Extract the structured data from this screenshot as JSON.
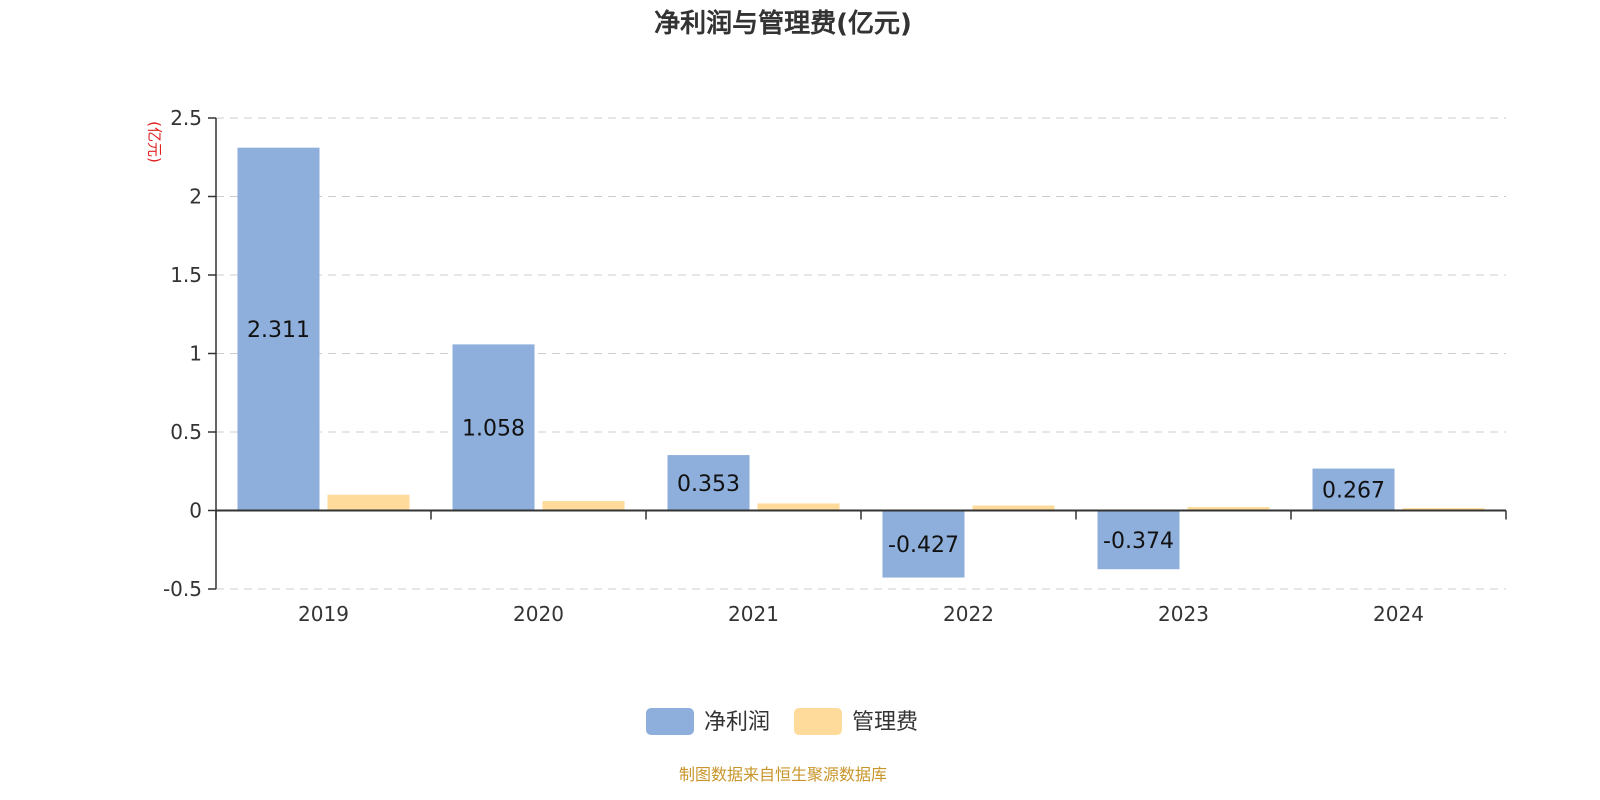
{
  "chart_data": {
    "type": "bar",
    "title": "净利润与管理费(亿元)",
    "unit_label": "(亿元)",
    "categories": [
      "2019",
      "2020",
      "2021",
      "2022",
      "2023",
      "2024"
    ],
    "series": [
      {
        "name": "净利润",
        "values": [
          2.311,
          1.058,
          0.353,
          -0.427,
          -0.374,
          0.267
        ],
        "data_labels": [
          "2.311",
          "1.058",
          "0.353",
          "-0.427",
          "-0.374",
          "0.267"
        ]
      },
      {
        "name": "管理费",
        "values": [
          0.1,
          0.06,
          0.045,
          0.032,
          0.022,
          0.015
        ]
      }
    ],
    "y_ticks": [
      "-0.5",
      "0",
      "0.5",
      "1",
      "1.5",
      "2",
      "2.5"
    ],
    "ylim": [
      -0.5,
      2.5
    ],
    "grid": true,
    "legend_position": "bottom-center"
  },
  "source_text": "制图数据来自恒生聚源数据库",
  "colors": {
    "net_profit": "#8eaedb",
    "admin_fee": "#fedb9a",
    "unit_label": "#e02020",
    "source_text": "#c8952a",
    "gridline": "#cccccc",
    "axis": "#333333"
  }
}
